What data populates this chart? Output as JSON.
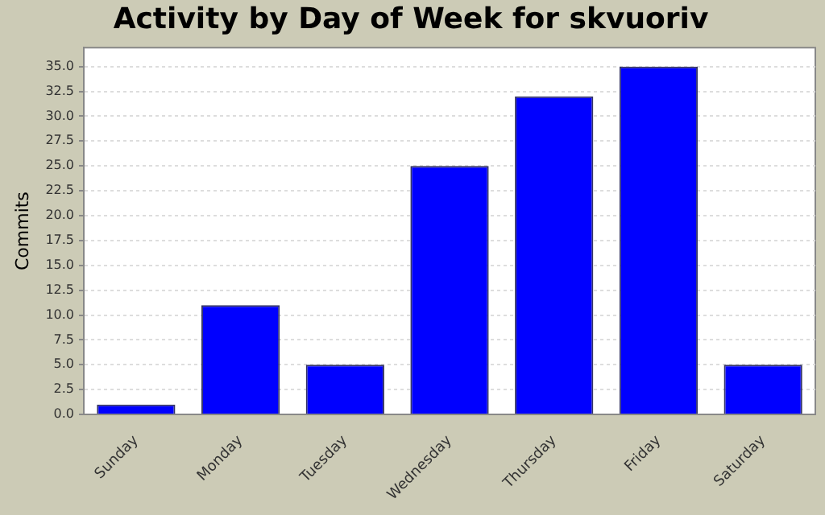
{
  "chart_data": {
    "type": "bar",
    "title": "Activity by Day of Week for skvuoriv",
    "ylabel": "Commits",
    "categories": [
      "Sunday",
      "Monday",
      "Tuesday",
      "Wednesday",
      "Thursday",
      "Friday",
      "Saturday"
    ],
    "values": [
      1,
      11,
      5,
      25,
      32,
      35,
      5
    ],
    "color": "#0000ff",
    "ylim": [
      0,
      36.9
    ],
    "yticks": [
      {
        "value": 0,
        "label": "0.0"
      },
      2.5,
      {
        "value": 5,
        "label": "5.0"
      },
      7.5,
      {
        "value": 10,
        "label": "10.0"
      },
      12.5,
      {
        "value": 15,
        "label": "15.0"
      },
      17.5,
      {
        "value": 20,
        "label": "20.0"
      },
      22.5,
      {
        "value": 25,
        "label": "25.0"
      },
      27.5,
      {
        "value": 30,
        "label": "30.0"
      },
      32.5,
      {
        "value": 35,
        "label": "35.0"
      }
    ],
    "grid": "y",
    "legend": false
  }
}
